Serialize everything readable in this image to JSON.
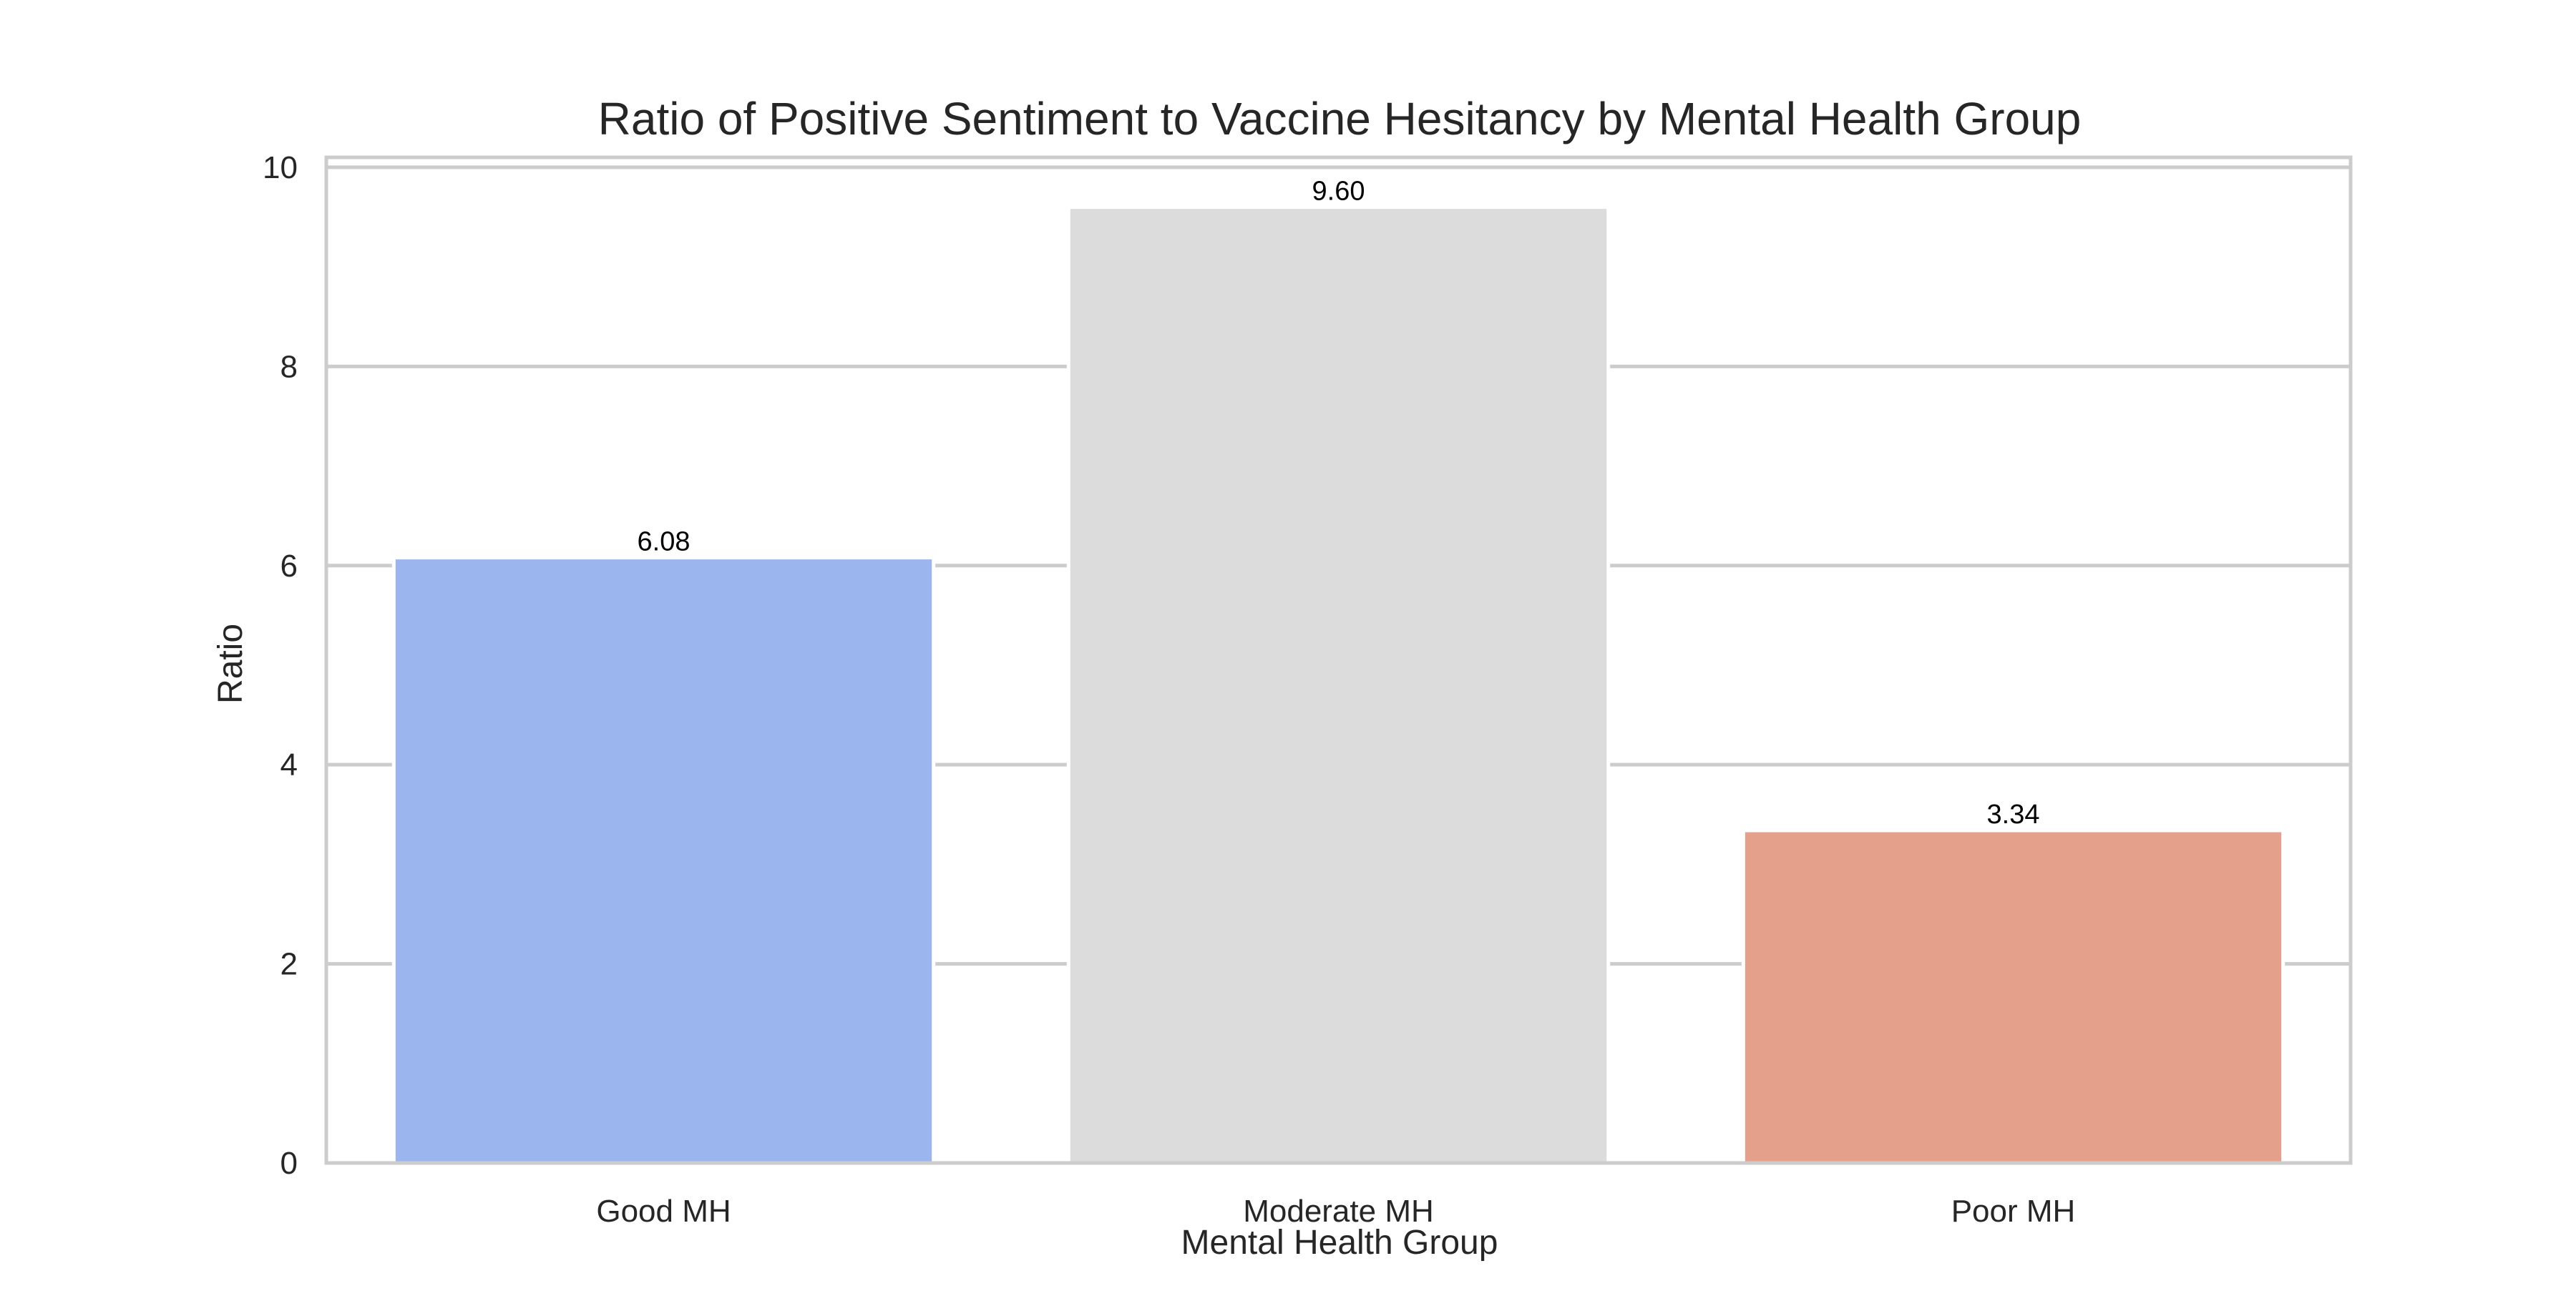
{
  "chart_data": {
    "type": "bar",
    "title": "Ratio of Positive Sentiment to Vaccine Hesitancy by Mental Health Group",
    "xlabel": "Mental Health Group",
    "ylabel": "Ratio",
    "categories": [
      "Good MH",
      "Moderate MH",
      "Poor MH"
    ],
    "values": [
      6.08,
      9.6,
      3.34
    ],
    "value_labels": [
      "6.08",
      "9.60",
      "3.34"
    ],
    "colors": [
      "#9BB5EE",
      "#DCDCDC",
      "#E4A08A"
    ],
    "ylim": [
      0,
      10.1
    ],
    "yticks": [
      0,
      2,
      4,
      6,
      8,
      10
    ],
    "ytick_labels": [
      "0",
      "2",
      "4",
      "6",
      "8",
      "10"
    ],
    "grid": true,
    "legend": "none"
  }
}
